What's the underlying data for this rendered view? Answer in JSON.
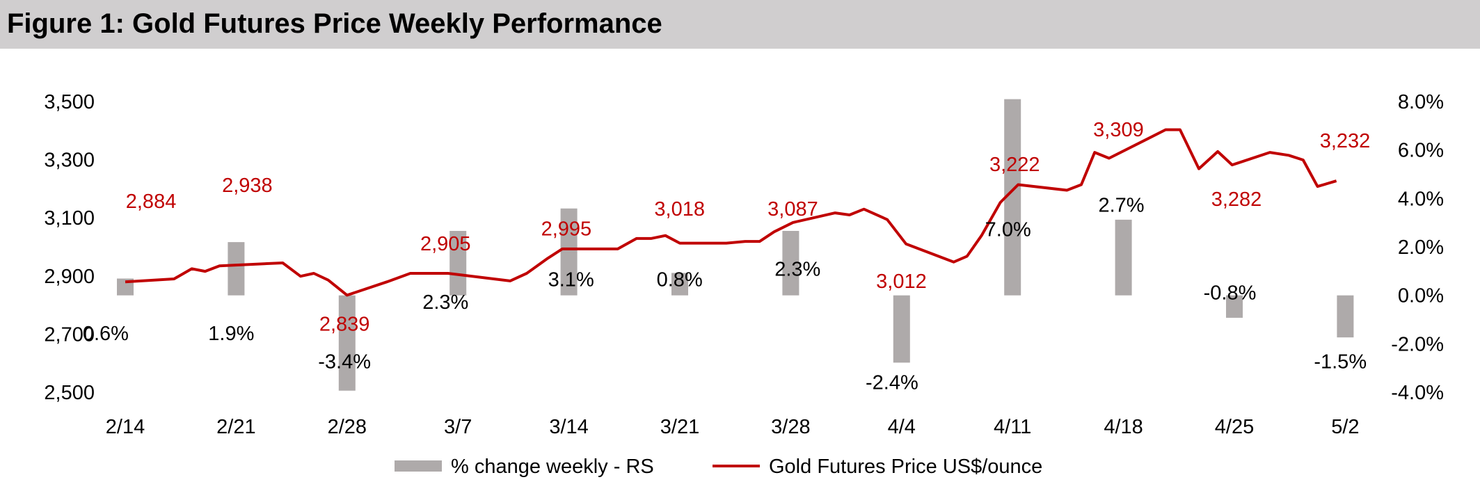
{
  "title": "Figure 1: Gold Futures Price Weekly Performance",
  "colors": {
    "line": "#c00000",
    "bar": "#aeaaaa",
    "title_bg": "#d0cecf"
  },
  "chart_data": {
    "type": "bar+line",
    "title": "Figure 1: Gold Futures Price Weekly Performance",
    "categories": [
      "2/14",
      "2/21",
      "2/28",
      "3/7",
      "3/14",
      "3/21",
      "3/28",
      "4/4",
      "4/11",
      "4/18",
      "4/25",
      "5/2"
    ],
    "left_axis": {
      "label": "Gold Futures Price US$/ounce",
      "ylim": [
        2500,
        3500
      ],
      "ticks": [
        "3,500",
        "3,300",
        "3,100",
        "2,900",
        "2,700",
        "2,500"
      ],
      "tick_values": [
        3500,
        3300,
        3100,
        2900,
        2700,
        2500
      ]
    },
    "right_axis": {
      "label": "% change weekly - RS",
      "ylim": [
        -4,
        8
      ],
      "ticks": [
        "8.0%",
        "6.0%",
        "4.0%",
        "2.0%",
        "0.0%",
        "-2.0%",
        "-4.0%"
      ],
      "tick_values": [
        8,
        6,
        4,
        2,
        0,
        -2,
        -4
      ]
    },
    "series": [
      {
        "name": "% change weekly - RS",
        "type": "bar",
        "axis": "right",
        "values": [
          0.6,
          1.9,
          -3.4,
          2.3,
          3.1,
          0.8,
          2.3,
          -2.4,
          7.0,
          2.7,
          -0.8,
          -1.5
        ],
        "labels": [
          "0.6%",
          "1.9%",
          "-3.4%",
          "2.3%",
          "3.1%",
          "0.8%",
          "2.3%",
          "-2.4%",
          "7.0%",
          "2.7%",
          "-0.8%",
          "-1.5%"
        ]
      },
      {
        "name": "Gold Futures Price US$/ounce",
        "type": "line",
        "axis": "left",
        "labels": [
          "2,884",
          "2,938",
          "2,839",
          "2,905",
          "2,995",
          "3,018",
          "3,087",
          "3,012",
          "3,222",
          "3,309",
          "3,282",
          "3,232"
        ],
        "points": [
          [
            0,
            2880
          ],
          [
            0.44,
            2890
          ],
          [
            0.6,
            2925
          ],
          [
            0.72,
            2916
          ],
          [
            0.85,
            2935
          ],
          [
            1.42,
            2945
          ],
          [
            1.58,
            2899
          ],
          [
            1.7,
            2909
          ],
          [
            1.83,
            2886
          ],
          [
            2.0,
            2834
          ],
          [
            2.36,
            2880
          ],
          [
            2.57,
            2909
          ],
          [
            2.91,
            2909
          ],
          [
            3.47,
            2883
          ],
          [
            3.62,
            2909
          ],
          [
            3.81,
            2961
          ],
          [
            3.94,
            2993
          ],
          [
            4.06,
            2993
          ],
          [
            4.44,
            2993
          ],
          [
            4.61,
            3029
          ],
          [
            4.74,
            3029
          ],
          [
            4.87,
            3039
          ],
          [
            5.0,
            3013
          ],
          [
            5.42,
            3013
          ],
          [
            5.59,
            3019
          ],
          [
            5.72,
            3019
          ],
          [
            5.85,
            3052
          ],
          [
            6.02,
            3084
          ],
          [
            6.4,
            3117
          ],
          [
            6.53,
            3110
          ],
          [
            6.66,
            3130
          ],
          [
            6.87,
            3094
          ],
          [
            7.04,
            3010
          ],
          [
            7.47,
            2948
          ],
          [
            7.59,
            2968
          ],
          [
            7.72,
            3039
          ],
          [
            7.89,
            3153
          ],
          [
            8.05,
            3214
          ],
          [
            8.49,
            3195
          ],
          [
            8.62,
            3214
          ],
          [
            8.74,
            3325
          ],
          [
            8.87,
            3305
          ],
          [
            9.38,
            3403
          ],
          [
            9.51,
            3403
          ],
          [
            9.68,
            3269
          ],
          [
            9.85,
            3328
          ],
          [
            9.98,
            3282
          ],
          [
            10.32,
            3325
          ],
          [
            10.49,
            3315
          ],
          [
            10.62,
            3299
          ],
          [
            10.75,
            3208
          ],
          [
            10.92,
            3227
          ]
        ]
      }
    ],
    "legend": {
      "placement": "bottom",
      "entries": [
        "% change weekly - RS",
        "Gold Futures Price US$/ounce"
      ]
    },
    "grid": false
  }
}
